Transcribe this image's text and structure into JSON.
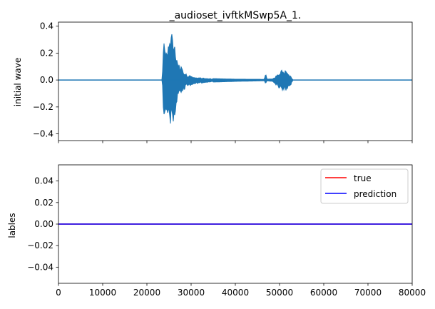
{
  "chart_data": [
    {
      "type": "line",
      "title": "_audioset_ivftkMSwp5A_1.",
      "xlabel": "",
      "ylabel": "initial wave",
      "xlim": [
        0,
        80000
      ],
      "ylim": [
        -0.45,
        0.43
      ],
      "y_ticks": [
        -0.4,
        -0.2,
        0.0,
        0.2,
        0.4
      ],
      "y_tick_labels": [
        "−0.4",
        "−0.2",
        "0.0",
        "0.2",
        "0.4"
      ],
      "x_ticks": [
        0,
        10000,
        20000,
        30000,
        40000,
        50000,
        60000,
        70000,
        80000
      ],
      "x_tick_labels_shown": false,
      "grid": false,
      "series": [
        {
          "color": "#1f77b4",
          "envelope_note": "waveform amplitude envelope (x, max, min)",
          "envelope": [
            [
              0,
              0.0,
              0.0
            ],
            [
              23500,
              0.0,
              0.0
            ],
            [
              23700,
              0.28,
              -0.2
            ],
            [
              24000,
              0.3,
              -0.3
            ],
            [
              24500,
              0.22,
              -0.25
            ],
            [
              25000,
              0.3,
              -0.28
            ],
            [
              25700,
              0.4,
              -0.42
            ],
            [
              26000,
              0.35,
              -0.33
            ],
            [
              26500,
              0.25,
              -0.24
            ],
            [
              27000,
              0.15,
              -0.12
            ],
            [
              28000,
              0.08,
              -0.09
            ],
            [
              29000,
              0.04,
              -0.05
            ],
            [
              31000,
              0.02,
              -0.03
            ],
            [
              35000,
              0.01,
              -0.015
            ],
            [
              40000,
              0.006,
              -0.01
            ],
            [
              46500,
              0.005,
              -0.006
            ],
            [
              46900,
              0.05,
              -0.03
            ],
            [
              47200,
              0.006,
              -0.006
            ],
            [
              48500,
              0.008,
              -0.01
            ],
            [
              49500,
              0.04,
              -0.05
            ],
            [
              50500,
              0.08,
              -0.08
            ],
            [
              51500,
              0.07,
              -0.08
            ],
            [
              52500,
              0.03,
              -0.05
            ],
            [
              53000,
              0.0,
              0.0
            ],
            [
              80000,
              0.0,
              0.0
            ]
          ]
        }
      ]
    },
    {
      "type": "line",
      "title": "",
      "xlabel": "",
      "ylabel": "lables",
      "xlim": [
        0,
        80000
      ],
      "ylim": [
        -0.055,
        0.055
      ],
      "y_ticks": [
        -0.04,
        -0.02,
        0.0,
        0.02,
        0.04
      ],
      "y_tick_labels": [
        "−0.04",
        "−0.02",
        "0.00",
        "0.02",
        "0.04"
      ],
      "x_ticks": [
        0,
        10000,
        20000,
        30000,
        40000,
        50000,
        60000,
        70000,
        80000
      ],
      "x_tick_labels": [
        "0",
        "10000",
        "20000",
        "30000",
        "40000",
        "50000",
        "60000",
        "70000",
        "80000"
      ],
      "grid": false,
      "legend_position": "top-right",
      "series": [
        {
          "name": "true",
          "color": "#ff0000",
          "x": [
            0,
            80000
          ],
          "y": [
            0,
            0
          ]
        },
        {
          "name": "prediction",
          "color": "#0000ff",
          "x": [
            0,
            80000
          ],
          "y": [
            0,
            0
          ]
        }
      ]
    }
  ]
}
